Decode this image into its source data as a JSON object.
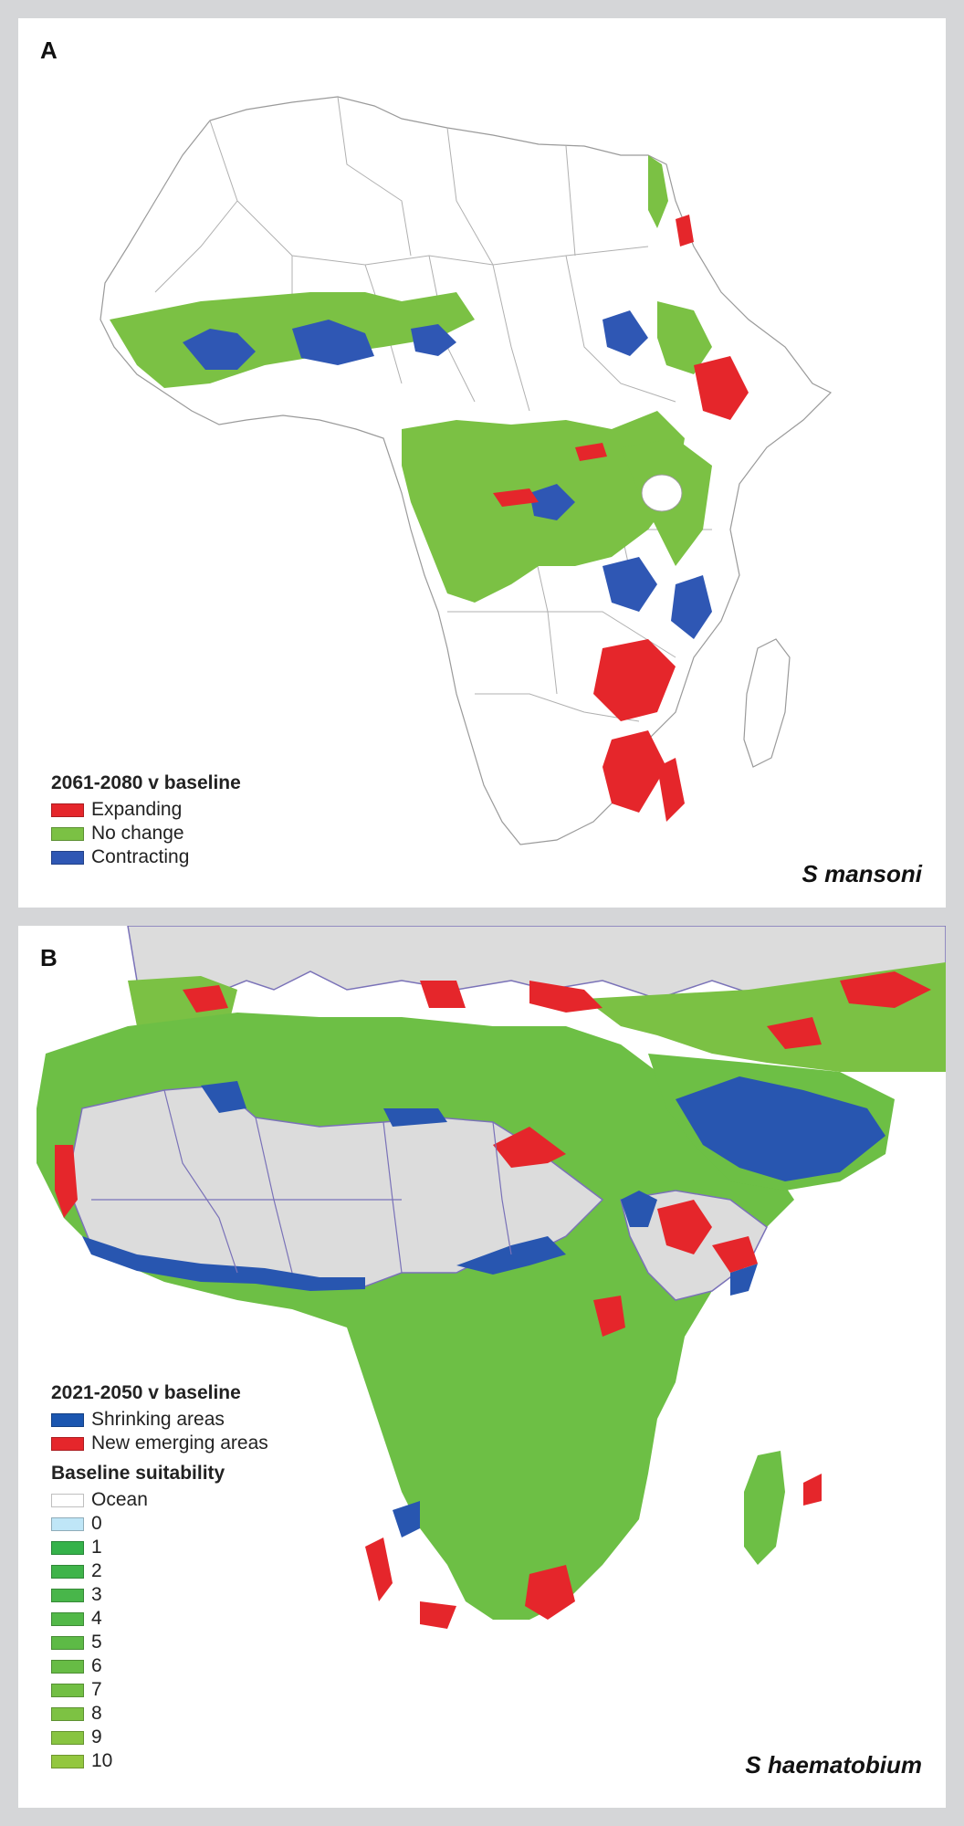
{
  "panel_a": {
    "letter": "A",
    "legend_title": "2061-2080 v baseline",
    "legend": [
      {
        "label": "Expanding",
        "color": "#e5262b"
      },
      {
        "label": "No change",
        "color": "#7bc144"
      },
      {
        "label": "Contracting",
        "color": "#2f57b4"
      }
    ],
    "species": "S mansoni"
  },
  "panel_b": {
    "letter": "B",
    "legend_title": "2021-2050 v baseline",
    "legend": [
      {
        "label": "Shrinking areas",
        "color": "#1b56b0"
      },
      {
        "label": "New emerging areas",
        "color": "#e5262b"
      }
    ],
    "suitability_title": "Baseline suitability",
    "suitability": [
      {
        "label": "Ocean",
        "color": "#ffffff"
      },
      {
        "label": "0",
        "color": "#bfe6f7"
      },
      {
        "label": "1",
        "color": "#35b24a"
      },
      {
        "label": "2",
        "color": "#3fb44a"
      },
      {
        "label": "3",
        "color": "#48b64a"
      },
      {
        "label": "4",
        "color": "#52b848"
      },
      {
        "label": "5",
        "color": "#5dba46"
      },
      {
        "label": "6",
        "color": "#67bc45"
      },
      {
        "label": "7",
        "color": "#72bf44"
      },
      {
        "label": "8",
        "color": "#7dc243"
      },
      {
        "label": "9",
        "color": "#88c441"
      },
      {
        "label": "10",
        "color": "#93c73f"
      }
    ],
    "species": "S haematobium"
  }
}
